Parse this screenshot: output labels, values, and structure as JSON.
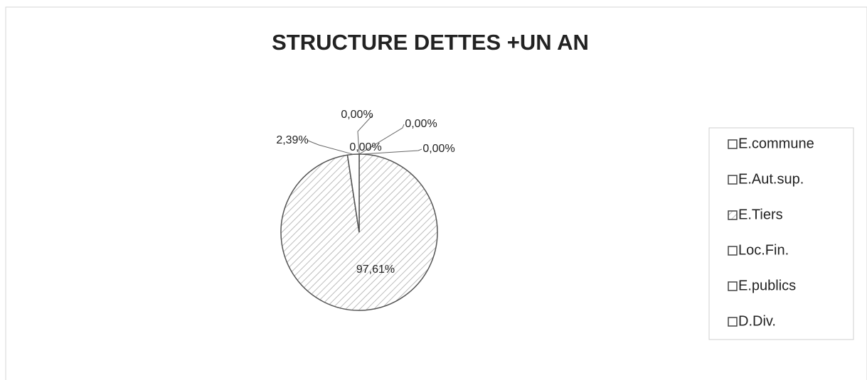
{
  "chart_data": {
    "type": "pie",
    "title": "STRUCTURE DETTES +UN AN",
    "categories": [
      "E.commune",
      "E.Aut.sup.",
      "E.Tiers",
      "Loc.Fin.",
      "E.publics",
      "D.Div."
    ],
    "values": [
      0,
      0,
      97.61,
      0,
      0,
      2.39
    ],
    "value_labels": [
      "0,00%",
      "0,00%",
      "97,61%",
      "0,00%",
      "0,00%",
      "2,39%"
    ],
    "fills": [
      "#ffffff",
      "#ffffff",
      "hatch",
      "#ffffff",
      "#ffffff",
      "#ffffff"
    ],
    "legend": "right"
  }
}
